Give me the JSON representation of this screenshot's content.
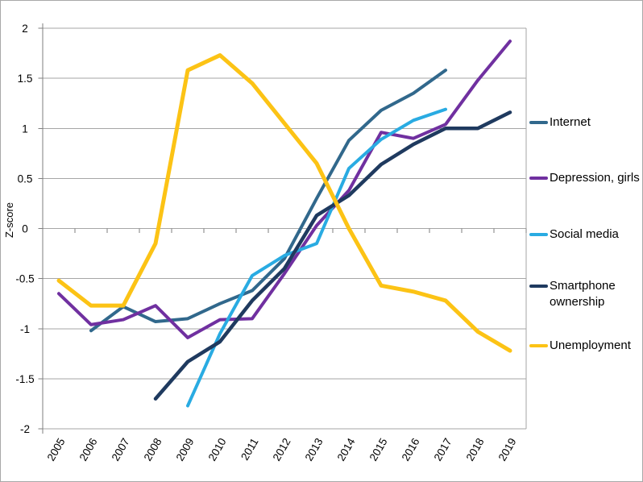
{
  "canvas": {
    "background": "#ffffff",
    "border_color": "#a8a8a8"
  },
  "axes": {
    "grid_color": "#a6a6a6",
    "axis_color": "#7f7f7f",
    "label_color": "#000000"
  },
  "chart_data": {
    "type": "line",
    "title": "",
    "xlabel": "",
    "ylabel": "Z-score",
    "x_categories": [
      "2005",
      "2006",
      "2007",
      "2008",
      "2009",
      "2010",
      "2011",
      "2012",
      "2013",
      "2014",
      "2015",
      "2016",
      "2017",
      "2018",
      "2019"
    ],
    "ylim": [
      -2,
      2
    ],
    "y_tick_step": 0.5,
    "y_tick_labels": [
      "2",
      "1.5",
      "1",
      "0.5",
      "0",
      "-0.5",
      "-1",
      "-1.5",
      "-2"
    ],
    "grid": "horizontal",
    "x_axis_position": "zero-line-ticks-labels-low",
    "legend_position": "right",
    "series": [
      {
        "name": "Internet",
        "color": "#31688c",
        "values": [
          null,
          -1.02,
          -0.78,
          -0.93,
          -0.9,
          -0.75,
          -0.62,
          -0.3,
          0.3,
          0.88,
          1.18,
          1.35,
          1.58,
          null,
          null
        ]
      },
      {
        "name": "Depression, girls",
        "color": "#7030a0",
        "values": [
          -0.65,
          -0.96,
          -0.91,
          -0.77,
          -1.09,
          -0.91,
          -0.9,
          -0.45,
          0.03,
          0.38,
          0.96,
          0.9,
          1.04,
          1.48,
          1.87
        ]
      },
      {
        "name": "Social media",
        "color": "#29abe2",
        "values": [
          null,
          null,
          null,
          null,
          -1.77,
          -1.05,
          -0.47,
          -0.27,
          -0.15,
          0.6,
          0.89,
          1.08,
          1.19,
          null,
          null
        ]
      },
      {
        "name": "Smartphone ownership",
        "color": "#1f3a5f",
        "values": [
          null,
          null,
          null,
          -1.7,
          -1.33,
          -1.13,
          -0.72,
          -0.4,
          0.13,
          0.33,
          0.64,
          0.84,
          1.0,
          1.0,
          1.16
        ]
      },
      {
        "name": "Unemployment",
        "color": "#fcc315",
        "values": [
          -0.52,
          -0.77,
          -0.77,
          -0.15,
          1.58,
          1.73,
          1.45,
          1.05,
          0.65,
          0.0,
          -0.57,
          -0.63,
          -0.72,
          -1.03,
          -1.22
        ]
      }
    ]
  }
}
